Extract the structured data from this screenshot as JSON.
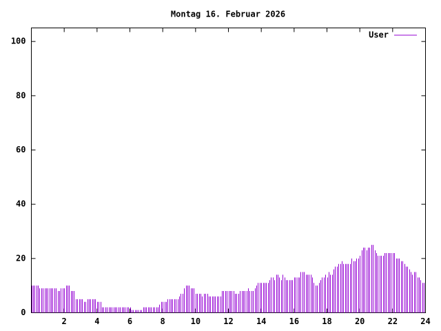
{
  "chart_data": {
    "type": "impulses",
    "title": "Montag 16. Februar 2026",
    "x": [
      0,
      0.1,
      0.2,
      0.3,
      0.4,
      0.5,
      0.6,
      0.7,
      0.8,
      0.9,
      1,
      1.1,
      1.2,
      1.3,
      1.4,
      1.5,
      1.6,
      1.7,
      1.8,
      1.9,
      2,
      2.1,
      2.2,
      2.3,
      2.4,
      2.5,
      2.6,
      2.7,
      2.8,
      2.9,
      3,
      3.1,
      3.2,
      3.3,
      3.4,
      3.5,
      3.6,
      3.7,
      3.8,
      3.9,
      4,
      4.1,
      4.2,
      4.3,
      4.4,
      4.5,
      4.6,
      4.7,
      4.8,
      4.9,
      5,
      5.1,
      5.2,
      5.3,
      5.4,
      5.5,
      5.6,
      5.7,
      5.8,
      5.9,
      6,
      6.1,
      6.2,
      6.3,
      6.4,
      6.5,
      6.6,
      6.7,
      6.8,
      6.9,
      7,
      7.1,
      7.2,
      7.3,
      7.4,
      7.5,
      7.6,
      7.7,
      7.8,
      7.9,
      8,
      8.1,
      8.2,
      8.3,
      8.4,
      8.5,
      8.6,
      8.7,
      8.8,
      8.9,
      9,
      9.1,
      9.2,
      9.3,
      9.4,
      9.5,
      9.6,
      9.7,
      9.8,
      9.9,
      10,
      10.1,
      10.2,
      10.3,
      10.4,
      10.5,
      10.6,
      10.7,
      10.8,
      10.9,
      11,
      11.1,
      11.2,
      11.3,
      11.4,
      11.5,
      11.6,
      11.7,
      11.8,
      11.9,
      12,
      12.1,
      12.2,
      12.3,
      12.4,
      12.5,
      12.6,
      12.7,
      12.8,
      12.9,
      13,
      13.1,
      13.2,
      13.3,
      13.4,
      13.5,
      13.6,
      13.7,
      13.8,
      13.9,
      14,
      14.1,
      14.2,
      14.3,
      14.4,
      14.5,
      14.6,
      14.7,
      14.8,
      14.9,
      15,
      15.1,
      15.2,
      15.3,
      15.4,
      15.5,
      15.6,
      15.7,
      15.8,
      15.9,
      16,
      16.1,
      16.2,
      16.3,
      16.4,
      16.5,
      16.6,
      16.7,
      16.8,
      16.9,
      17,
      17.1,
      17.2,
      17.3,
      17.4,
      17.5,
      17.6,
      17.7,
      17.8,
      17.9,
      18,
      18.1,
      18.2,
      18.3,
      18.4,
      18.5,
      18.6,
      18.7,
      18.8,
      18.9,
      19,
      19.1,
      19.2,
      19.3,
      19.4,
      19.5,
      19.6,
      19.7,
      19.8,
      19.9,
      20,
      20.1,
      20.2,
      20.3,
      20.4,
      20.5,
      20.6,
      20.7,
      20.8,
      20.9,
      21,
      21.1,
      21.2,
      21.3,
      21.4,
      21.5,
      21.6,
      21.7,
      21.8,
      21.9,
      22,
      22.1,
      22.2,
      22.3,
      22.4,
      22.5,
      22.6,
      22.7,
      22.8,
      22.9,
      23,
      23.1,
      23.2,
      23.3,
      23.4,
      23.5,
      23.6,
      23.7,
      23.8,
      23.9
    ],
    "series": [
      {
        "name": "User",
        "color": "#9400d3",
        "values": [
          10,
          10,
          10,
          10,
          10,
          9,
          9,
          9,
          9,
          9,
          9,
          9,
          9,
          9,
          9,
          9,
          8,
          8,
          9,
          9,
          9,
          10,
          10,
          10,
          8,
          8,
          8,
          5,
          5,
          5,
          5,
          5,
          4,
          4,
          5,
          5,
          5,
          5,
          5,
          5,
          4,
          4,
          4,
          2,
          2,
          2,
          2,
          2,
          2,
          2,
          2,
          2,
          2,
          2,
          2,
          2,
          2,
          2,
          2,
          2,
          2,
          1,
          1,
          1,
          1,
          1,
          1,
          1,
          2,
          2,
          2,
          2,
          2,
          2,
          2,
          2,
          2,
          2,
          3,
          4,
          4,
          4,
          4,
          5,
          5,
          5,
          5,
          5,
          5,
          5,
          6,
          7,
          7,
          9,
          10,
          10,
          10,
          9,
          9,
          9,
          7,
          7,
          7,
          7,
          6,
          7,
          7,
          7,
          6,
          6,
          6,
          6,
          6,
          6,
          6,
          6,
          8,
          8,
          8,
          8,
          8,
          8,
          8,
          8,
          7,
          7,
          7,
          8,
          8,
          8,
          8,
          8,
          9,
          8,
          8,
          8,
          9,
          10,
          11,
          11,
          11,
          11,
          11,
          11,
          11,
          12,
          13,
          13,
          12,
          14,
          14,
          13,
          12,
          14,
          13,
          12,
          12,
          12,
          12,
          12,
          13,
          13,
          13,
          13,
          15,
          15,
          15,
          14,
          14,
          14,
          14,
          13,
          11,
          10,
          10,
          11,
          12,
          13,
          13,
          14,
          13,
          15,
          14,
          14,
          16,
          17,
          17,
          18,
          18,
          19,
          18,
          18,
          18,
          18,
          18,
          20,
          19,
          19,
          20,
          20,
          21,
          23,
          24,
          24,
          23,
          24,
          24,
          25,
          25,
          23,
          22,
          21,
          21,
          21,
          21,
          22,
          22,
          22,
          22,
          22,
          22,
          22,
          20,
          20,
          20,
          19,
          19,
          18,
          17,
          17,
          16,
          15,
          14,
          15,
          15,
          13,
          13,
          12,
          11,
          11
        ]
      }
    ],
    "xlim": [
      0,
      24
    ],
    "xticks": [
      2,
      4,
      6,
      8,
      10,
      12,
      14,
      16,
      18,
      20,
      22,
      24
    ],
    "ylim": [
      0,
      105
    ],
    "yticks": [
      0,
      20,
      40,
      60,
      80,
      100
    ]
  }
}
